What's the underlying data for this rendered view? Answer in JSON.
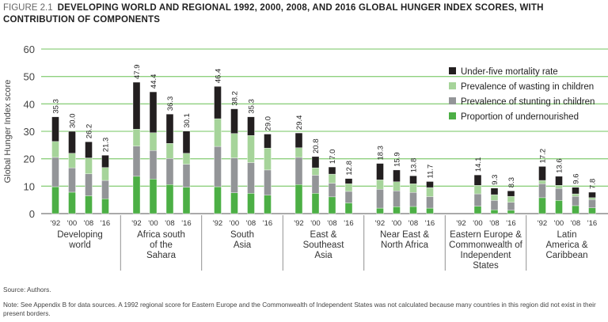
{
  "figure_label": "FIGURE 2.1",
  "title": "DEVELOPING WORLD AND REGIONAL 1992, 2000, 2008, AND 2016 GLOBAL HUNGER INDEX SCORES, WITH CONTRIBUTION OF COMPONENTS",
  "source": "Source: Authors.",
  "note": "Note: See Appendix B for data sources. A 1992 regional score for Eastern Europe and the Commonwealth of Independent States was not calculated because many countries in this region did not exist in their present borders.",
  "chart_data": {
    "type": "bar",
    "stacked": true,
    "ylabel": "Global Hunger Index score",
    "ylim": [
      0,
      60
    ],
    "yticks": [
      0,
      10,
      20,
      30,
      40,
      50,
      60
    ],
    "grid": true,
    "legend_position": "top-right",
    "year_labels": [
      "'92",
      "'00",
      "'08",
      "'16"
    ],
    "components": [
      {
        "name": "Proportion of undernourished",
        "color": "#4caf45"
      },
      {
        "name": "Prevalence of stunting in children",
        "color": "#939598"
      },
      {
        "name": "Prevalence of wasting in children",
        "color": "#a6d49a"
      },
      {
        "name": "Under-five mortality rate",
        "color": "#231f20"
      }
    ],
    "groups": [
      {
        "name": [
          "Developing",
          "world"
        ],
        "bars": [
          {
            "total": "35.3",
            "parts": [
              9.8,
              10.7,
              5.8,
              9.0
            ]
          },
          {
            "total": "30.0",
            "parts": [
              7.8,
              8.9,
              5.3,
              8.0
            ]
          },
          {
            "total": "26.2",
            "parts": [
              6.5,
              8.0,
              5.8,
              5.9
            ]
          },
          {
            "total": "21.3",
            "parts": [
              5.4,
              6.7,
              4.7,
              4.5
            ]
          }
        ]
      },
      {
        "name": [
          "Africa south",
          "of the",
          "Sahara"
        ],
        "bars": [
          {
            "total": "47.9",
            "parts": [
              13.6,
              11.0,
              6.2,
              17.1
            ]
          },
          {
            "total": "44.4",
            "parts": [
              12.6,
              10.4,
              6.5,
              14.9
            ]
          },
          {
            "total": "36.3",
            "parts": [
              10.6,
              9.5,
              5.5,
              10.7
            ]
          },
          {
            "total": "30.1",
            "parts": [
              9.6,
              8.4,
              4.0,
              8.1
            ]
          }
        ]
      },
      {
        "name": [
          "South",
          "Asia"
        ],
        "bars": [
          {
            "total": "46.4",
            "parts": [
              9.8,
              14.7,
              10.1,
              11.8
            ]
          },
          {
            "total": "38.2",
            "parts": [
              7.6,
              12.7,
              8.9,
              9.0
            ]
          },
          {
            "total": "35.3",
            "parts": [
              7.4,
              11.2,
              9.9,
              6.8
            ]
          },
          {
            "total": "29.0",
            "parts": [
              6.7,
              9.2,
              8.0,
              5.1
            ]
          }
        ]
      },
      {
        "name": [
          "East &",
          "Southeast",
          "Asia"
        ],
        "bars": [
          {
            "total": "29.4",
            "parts": [
              10.6,
              9.9,
              3.5,
              5.4
            ]
          },
          {
            "total": "20.8",
            "parts": [
              7.4,
              6.6,
              2.7,
              4.1
            ]
          },
          {
            "total": "17.0",
            "parts": [
              6.1,
              5.0,
              3.3,
              2.6
            ]
          },
          {
            "total": "12.8",
            "parts": [
              3.9,
              4.2,
              2.8,
              1.9
            ]
          }
        ]
      },
      {
        "name": [
          "Near East &",
          "North Africa"
        ],
        "bars": [
          {
            "total": "18.3",
            "parts": [
              2.0,
              6.9,
              3.4,
              6.0
            ]
          },
          {
            "total": "15.9",
            "parts": [
              2.5,
              5.8,
              3.3,
              4.3
            ]
          },
          {
            "total": "13.8",
            "parts": [
              2.6,
              5.1,
              3.2,
              2.9
            ]
          },
          {
            "total": "11.7",
            "parts": [
              2.0,
              4.2,
              3.3,
              2.2
            ]
          }
        ]
      },
      {
        "name": [
          "Eastern Europe &",
          "Commonwealth of",
          "Independent",
          "States"
        ],
        "bars": [
          null,
          {
            "total": "14.1",
            "parts": [
              2.7,
              4.5,
              3.1,
              3.8
            ]
          },
          {
            "total": "9.3",
            "parts": [
              1.4,
              3.4,
              2.1,
              2.4
            ]
          },
          {
            "total": "8.3",
            "parts": [
              1.2,
              2.9,
              2.2,
              2.0
            ]
          }
        ]
      },
      {
        "name": [
          "Latin",
          "America &",
          "Caribbean"
        ],
        "bars": [
          {
            "total": "17.2",
            "parts": [
              5.8,
              5.1,
              1.2,
              5.1
            ]
          },
          {
            "total": "13.6",
            "parts": [
              4.8,
              4.4,
              1.1,
              3.3
            ]
          },
          {
            "total": "9.6",
            "parts": [
              2.9,
              3.4,
              0.9,
              2.4
            ]
          },
          {
            "total": "7.8",
            "parts": [
              2.1,
              3.0,
              0.7,
              2.0
            ]
          }
        ]
      }
    ]
  }
}
